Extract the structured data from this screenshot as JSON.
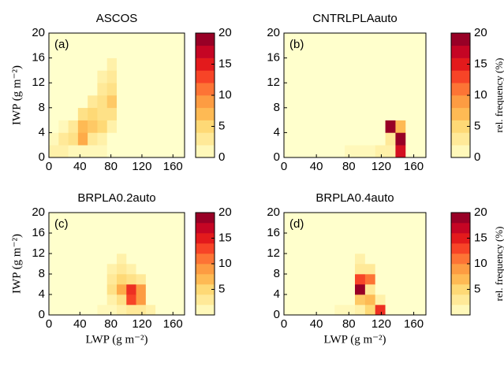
{
  "chart_data": [
    {
      "type": "heatmap",
      "title": "ASCOS",
      "panel_label": "(a)",
      "ylabel": "IWP (g m⁻²)",
      "xlim": [
        0,
        175
      ],
      "ylim": [
        0,
        20
      ],
      "xticks": [
        0,
        40,
        80,
        120,
        160
      ],
      "yticks": [
        0,
        4,
        8,
        12,
        16,
        20
      ],
      "xbins": [
        0,
        12.5,
        25,
        37.5,
        50,
        62.5,
        75,
        87.5,
        100,
        112.5,
        125,
        137.5,
        150,
        162.5,
        175
      ],
      "ybins": [
        0,
        2,
        4,
        6,
        8,
        10,
        12,
        14,
        16,
        18,
        20
      ],
      "clim": [
        0,
        20
      ],
      "cticks": [
        0,
        5,
        10,
        15,
        20
      ],
      "colormap": [
        "#ffffcc",
        "#ffeda0",
        "#fed976",
        "#feb24c",
        "#fd8d3c",
        "#fc4e2a",
        "#e31a1c",
        "#bd0026",
        "#800026"
      ],
      "values": [
        [
          2,
          2,
          1,
          1,
          1,
          1,
          0,
          0,
          0,
          0,
          0,
          0,
          0,
          0
        ],
        [
          1,
          3,
          4,
          8,
          3,
          2,
          0,
          0,
          0,
          0,
          0,
          0,
          0,
          0
        ],
        [
          0,
          1,
          3,
          7,
          6,
          5,
          2,
          0,
          0,
          0,
          0,
          0,
          0,
          0
        ],
        [
          0,
          0,
          0,
          4,
          5,
          4,
          4,
          0,
          0,
          0,
          0,
          0,
          0,
          0
        ],
        [
          0,
          0,
          0,
          0,
          3,
          4,
          6,
          0,
          0,
          0,
          0,
          0,
          0,
          0
        ],
        [
          0,
          0,
          0,
          0,
          0,
          3,
          4,
          0,
          0,
          0,
          0,
          0,
          0,
          0
        ],
        [
          0,
          0,
          0,
          0,
          0,
          2,
          3,
          0,
          0,
          0,
          0,
          0,
          0,
          0
        ],
        [
          0,
          0,
          0,
          0,
          0,
          0,
          2,
          0,
          0,
          0,
          0,
          0,
          0,
          0
        ],
        [
          0,
          0,
          0,
          0,
          0,
          0,
          0,
          0,
          0,
          0,
          0,
          0,
          0,
          0
        ],
        [
          0,
          0,
          0,
          0,
          0,
          0,
          0,
          0,
          0,
          0,
          0,
          0,
          0,
          0
        ]
      ]
    },
    {
      "type": "heatmap",
      "title": "CNTRLPLAauto",
      "panel_label": "(b)",
      "clabel": "rel. frequency (%)",
      "xlim": [
        0,
        175
      ],
      "ylim": [
        0,
        20
      ],
      "xticks": [
        0,
        40,
        80,
        120,
        160
      ],
      "yticks": [
        0,
        4,
        8,
        12,
        16,
        20
      ],
      "xbins": [
        0,
        12.5,
        25,
        37.5,
        50,
        62.5,
        75,
        87.5,
        100,
        112.5,
        125,
        137.5,
        150,
        162.5,
        175
      ],
      "ybins": [
        0,
        2,
        4,
        6,
        8,
        10,
        12,
        14,
        16,
        18,
        20
      ],
      "clim": [
        0,
        20
      ],
      "cticks": [
        0,
        5,
        10,
        15,
        20
      ],
      "colormap": [
        "#ffffcc",
        "#ffeda0",
        "#fed976",
        "#feb24c",
        "#fd8d3c",
        "#fc4e2a",
        "#e31a1c",
        "#bd0026",
        "#800026"
      ],
      "values": [
        [
          0,
          0,
          0,
          0,
          0,
          0,
          1,
          1,
          1,
          2,
          2,
          16,
          0,
          0
        ],
        [
          0,
          0,
          0,
          0,
          0,
          0,
          0,
          0,
          0,
          0,
          3,
          19,
          0,
          0
        ],
        [
          0,
          0,
          0,
          0,
          0,
          0,
          0,
          0,
          0,
          0,
          19,
          7,
          0,
          0
        ],
        [
          0,
          0,
          0,
          0,
          0,
          0,
          0,
          0,
          0,
          0,
          0,
          0,
          0,
          0
        ],
        [
          0,
          0,
          0,
          0,
          0,
          0,
          0,
          0,
          0,
          0,
          0,
          0,
          0,
          0
        ],
        [
          0,
          0,
          0,
          0,
          0,
          0,
          0,
          0,
          0,
          0,
          0,
          0,
          0,
          0
        ],
        [
          0,
          0,
          0,
          0,
          0,
          0,
          0,
          0,
          0,
          0,
          0,
          0,
          0,
          0
        ],
        [
          0,
          0,
          0,
          0,
          0,
          0,
          0,
          0,
          0,
          0,
          0,
          0,
          0,
          0
        ],
        [
          0,
          0,
          0,
          0,
          0,
          0,
          0,
          0,
          0,
          0,
          0,
          0,
          0,
          0
        ],
        [
          0,
          0,
          0,
          0,
          0,
          0,
          0,
          0,
          0,
          0,
          0,
          0,
          0,
          0
        ]
      ]
    },
    {
      "type": "heatmap",
      "title": "BRPLA0.2auto",
      "panel_label": "(c)",
      "ylabel": "IWP (g m⁻²)",
      "xlabel": "LWP (g m⁻²)",
      "xlim": [
        0,
        175
      ],
      "ylim": [
        0,
        20
      ],
      "xticks": [
        0,
        40,
        80,
        120,
        160
      ],
      "yticks": [
        0,
        4,
        8,
        12,
        16,
        20
      ],
      "xbins": [
        0,
        12.5,
        25,
        37.5,
        50,
        62.5,
        75,
        87.5,
        100,
        112.5,
        125,
        137.5,
        150,
        162.5,
        175
      ],
      "ybins": [
        0,
        2,
        4,
        6,
        8,
        10,
        12,
        14,
        16,
        18,
        20
      ],
      "clim": [
        0,
        20
      ],
      "cticks": [
        5,
        10,
        15,
        20
      ],
      "colormap": [
        "#ffffcc",
        "#ffeda0",
        "#fed976",
        "#feb24c",
        "#fd8d3c",
        "#fc4e2a",
        "#e31a1c",
        "#bd0026",
        "#800026"
      ],
      "values": [
        [
          0,
          0,
          0,
          0,
          0,
          1,
          1,
          2,
          3,
          3,
          2,
          0,
          0,
          0
        ],
        [
          0,
          0,
          0,
          0,
          0,
          0,
          2,
          4,
          13,
          9,
          0,
          0,
          0,
          0
        ],
        [
          0,
          0,
          0,
          0,
          0,
          0,
          4,
          8,
          14,
          9,
          0,
          0,
          0,
          0
        ],
        [
          0,
          0,
          0,
          0,
          0,
          0,
          3,
          5,
          4,
          3,
          0,
          0,
          0,
          0
        ],
        [
          0,
          0,
          0,
          0,
          0,
          0,
          2,
          3,
          2,
          0,
          0,
          0,
          0,
          0
        ],
        [
          0,
          0,
          0,
          0,
          0,
          0,
          0,
          2,
          0,
          0,
          0,
          0,
          0,
          0
        ],
        [
          0,
          0,
          0,
          0,
          0,
          0,
          0,
          0,
          0,
          0,
          0,
          0,
          0,
          0
        ],
        [
          0,
          0,
          0,
          0,
          0,
          0,
          0,
          0,
          0,
          0,
          0,
          0,
          0,
          0
        ],
        [
          0,
          0,
          0,
          0,
          0,
          0,
          0,
          0,
          0,
          0,
          0,
          0,
          0,
          0
        ],
        [
          0,
          0,
          0,
          0,
          0,
          0,
          0,
          0,
          0,
          0,
          0,
          0,
          0,
          0
        ]
      ]
    },
    {
      "type": "heatmap",
      "title": "BRPLA0.4auto",
      "panel_label": "(d)",
      "xlabel": "LWP (g m⁻²)",
      "clabel": "rel. frequency (%)",
      "xlim": [
        0,
        175
      ],
      "ylim": [
        0,
        20
      ],
      "xticks": [
        0,
        40,
        80,
        120,
        160
      ],
      "yticks": [
        0,
        4,
        8,
        12,
        16,
        20
      ],
      "xbins": [
        0,
        12.5,
        25,
        37.5,
        50,
        62.5,
        75,
        87.5,
        100,
        112.5,
        125,
        137.5,
        150,
        162.5,
        175
      ],
      "ybins": [
        0,
        2,
        4,
        6,
        8,
        10,
        12,
        14,
        16,
        18,
        20
      ],
      "clim": [
        0,
        20
      ],
      "cticks": [
        5,
        10,
        15,
        20
      ],
      "colormap": [
        "#ffffcc",
        "#ffeda0",
        "#fed976",
        "#feb24c",
        "#fd8d3c",
        "#fc4e2a",
        "#e31a1c",
        "#bd0026",
        "#800026"
      ],
      "values": [
        [
          0,
          0,
          0,
          0,
          0,
          1,
          1,
          2,
          5,
          14,
          0,
          0,
          0,
          0
        ],
        [
          0,
          0,
          0,
          0,
          0,
          0,
          0,
          6,
          7,
          2,
          0,
          0,
          0,
          0
        ],
        [
          0,
          0,
          0,
          0,
          0,
          0,
          0,
          19,
          3,
          0,
          0,
          0,
          0,
          0
        ],
        [
          0,
          0,
          0,
          0,
          0,
          0,
          0,
          13,
          11,
          0,
          0,
          0,
          0,
          0
        ],
        [
          0,
          0,
          0,
          0,
          0,
          0,
          0,
          3,
          3,
          0,
          0,
          0,
          0,
          0
        ],
        [
          0,
          0,
          0,
          0,
          0,
          0,
          0,
          2,
          0,
          0,
          0,
          0,
          0,
          0
        ],
        [
          0,
          0,
          0,
          0,
          0,
          0,
          0,
          0,
          0,
          0,
          0,
          0,
          0,
          0
        ],
        [
          0,
          0,
          0,
          0,
          0,
          0,
          0,
          0,
          0,
          0,
          0,
          0,
          0,
          0
        ],
        [
          0,
          0,
          0,
          0,
          0,
          0,
          0,
          0,
          0,
          0,
          0,
          0,
          0,
          0
        ],
        [
          0,
          0,
          0,
          0,
          0,
          0,
          0,
          0,
          0,
          0,
          0,
          0,
          0,
          0
        ]
      ]
    }
  ]
}
